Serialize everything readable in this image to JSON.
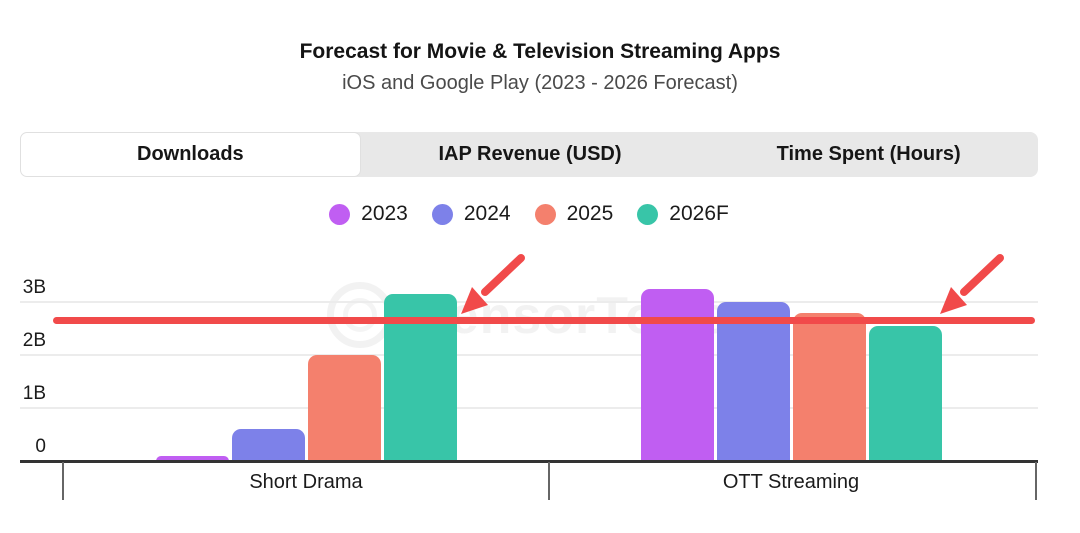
{
  "header": {
    "title": "Forecast for Movie & Television Streaming Apps",
    "subtitle": "iOS and Google Play (2023 - 2026 Forecast)"
  },
  "tabs": {
    "items": [
      {
        "label": "Downloads",
        "active": true
      },
      {
        "label": "IAP Revenue (USD)",
        "active": false
      },
      {
        "label": "Time Spent (Hours)",
        "active": false
      }
    ]
  },
  "watermark": {
    "text": "SensorTower"
  },
  "chart_data": {
    "type": "bar",
    "title": "Forecast for Movie & Television Streaming Apps",
    "subtitle": "iOS and Google Play (2023 - 2026 Forecast)",
    "active_metric": "Downloads",
    "unit": "billions of downloads",
    "categories": [
      "Short Drama",
      "OTT Streaming"
    ],
    "series": [
      {
        "name": "2023",
        "color": "#c05ef2",
        "values": [
          0.1,
          3.25
        ]
      },
      {
        "name": "2024",
        "color": "#7d81e9",
        "values": [
          0.6,
          3.0
        ]
      },
      {
        "name": "2025",
        "color": "#f4806d",
        "values": [
          2.0,
          2.8
        ]
      },
      {
        "name": "2026F",
        "color": "#38c5a8",
        "values": [
          3.15,
          2.55
        ]
      }
    ],
    "yticks": [
      {
        "value": 0,
        "label": "0"
      },
      {
        "value": 1,
        "label": "1B"
      },
      {
        "value": 2,
        "label": "2B"
      },
      {
        "value": 3,
        "label": "3B"
      }
    ],
    "ylim": [
      0,
      3.7
    ],
    "xlabel": "",
    "ylabel": "",
    "grid": true,
    "legend_position": "top",
    "annotation_line": {
      "value": 2.65,
      "color": "#f14a4a"
    },
    "arrows": [
      {
        "points_at": "red line near Short Drama 2026F bar"
      },
      {
        "points_at": "red line near OTT Streaming 2026F bar"
      }
    ]
  }
}
